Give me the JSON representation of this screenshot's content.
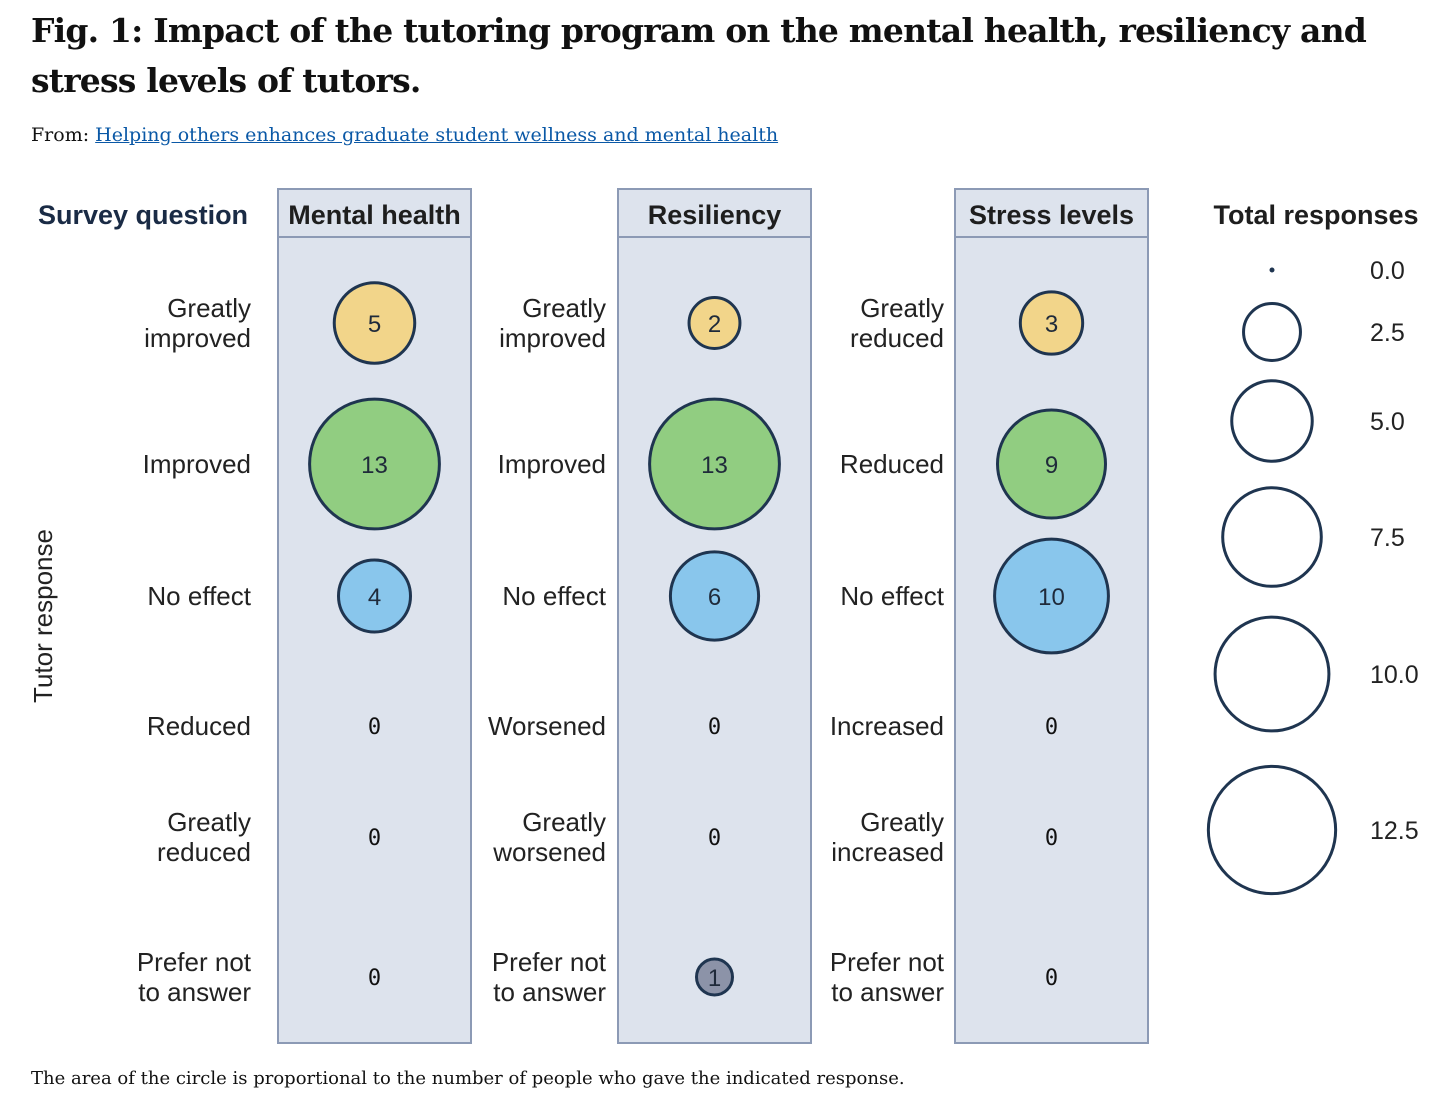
{
  "figure": {
    "title": "Fig. 1: Impact of the tutoring program on the mental health, resiliency and stress levels of tutors.",
    "source_prefix": "From:",
    "source_link": "Helping others enhances graduate student wellness and mental health",
    "caption": "The area of the circle is proportional to the number of people who gave the indicated response."
  },
  "chart_data": {
    "type": "scatter",
    "subtype": "bubble",
    "row_header": "Survey question",
    "ylabel": "Tutor response",
    "colors": {
      "panel": "#dde3ed",
      "panel_border": "#8c9ab5",
      "stroke": "#1f3550",
      "greatly_positive": "#f2d58a",
      "positive": "#91cd81",
      "no_effect": "#89c6ec",
      "prefer_not": "#8c93a8"
    },
    "panels": [
      {
        "name": "Mental health",
        "responses": [
          {
            "label": "Greatly improved",
            "lines": [
              "Greatly",
              "improved"
            ],
            "value": 5,
            "display": "5",
            "color_key": "greatly_positive"
          },
          {
            "label": "Improved",
            "lines": [
              "Improved"
            ],
            "value": 13,
            "display": "13",
            "color_key": "positive"
          },
          {
            "label": "No effect",
            "lines": [
              "No effect"
            ],
            "value": 4,
            "display": "4",
            "color_key": "no_effect"
          },
          {
            "label": "Reduced",
            "lines": [
              "Reduced"
            ],
            "value": 0,
            "display": "0",
            "color_key": ""
          },
          {
            "label": "Greatly reduced",
            "lines": [
              "Greatly",
              "reduced"
            ],
            "value": 0,
            "display": "0",
            "color_key": ""
          },
          {
            "label": "Prefer not to answer",
            "lines": [
              "Prefer not",
              "to answer"
            ],
            "value": 0,
            "display": "0",
            "color_key": ""
          }
        ]
      },
      {
        "name": "Resiliency",
        "responses": [
          {
            "label": "Greatly improved",
            "lines": [
              "Greatly",
              "improved"
            ],
            "value": 2,
            "display": "2",
            "color_key": "greatly_positive"
          },
          {
            "label": "Improved",
            "lines": [
              "Improved"
            ],
            "value": 13,
            "display": "13",
            "color_key": "positive"
          },
          {
            "label": "No effect",
            "lines": [
              "No effect"
            ],
            "value": 6,
            "display": "6",
            "color_key": "no_effect"
          },
          {
            "label": "Worsened",
            "lines": [
              "Worsened"
            ],
            "value": 0,
            "display": "0",
            "color_key": ""
          },
          {
            "label": "Greatly worsened",
            "lines": [
              "Greatly",
              "worsened"
            ],
            "value": 0,
            "display": "0",
            "color_key": ""
          },
          {
            "label": "Prefer not to answer",
            "lines": [
              "Prefer not",
              "to answer"
            ],
            "value": 1,
            "display": "1",
            "color_key": "prefer_not"
          }
        ]
      },
      {
        "name": "Stress levels",
        "responses": [
          {
            "label": "Greatly reduced",
            "lines": [
              "Greatly",
              "reduced"
            ],
            "value": 3,
            "display": "3",
            "color_key": "greatly_positive"
          },
          {
            "label": "Reduced",
            "lines": [
              "Reduced"
            ],
            "value": 9,
            "display": "9",
            "color_key": "positive"
          },
          {
            "label": "No effect",
            "lines": [
              "No effect"
            ],
            "value": 10,
            "display": "10",
            "color_key": "no_effect"
          },
          {
            "label": "Increased",
            "lines": [
              "Increased"
            ],
            "value": 0,
            "display": "0",
            "color_key": ""
          },
          {
            "label": "Greatly increased",
            "lines": [
              "Greatly",
              "increased"
            ],
            "value": 0,
            "display": "0",
            "color_key": ""
          },
          {
            "label": "Prefer not to answer",
            "lines": [
              "Prefer not",
              "to answer"
            ],
            "value": 0,
            "display": "0",
            "color_key": ""
          }
        ]
      }
    ],
    "size_legend": {
      "title": "Total responses",
      "values": [
        0.0,
        2.5,
        5.0,
        7.5,
        10.0,
        12.5
      ],
      "labels": [
        "0.0",
        "2.5",
        "5.0",
        "7.5",
        "10.0",
        "12.5"
      ]
    }
  }
}
